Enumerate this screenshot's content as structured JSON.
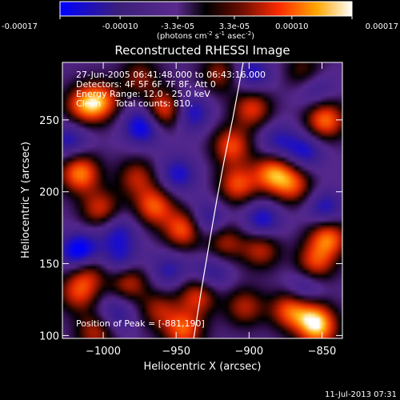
{
  "colorbar": {
    "tick_labels": [
      "-0.00017",
      "-0.00010",
      "-3.3e-05",
      "3.3e-05",
      "0.00010",
      "0.00017"
    ],
    "tick_values": [
      -0.00017,
      -0.0001,
      -3.3e-05,
      3.3e-05,
      0.0001,
      0.00017
    ],
    "range": [
      -0.00017,
      0.00017
    ],
    "units_prefix": "(photons cm",
    "units_exp1": "-2",
    "units_mid": " s",
    "units_exp2": "-1",
    "units_suffix": " asec",
    "units_exp3": "-2",
    "units_close": ")",
    "colors": [
      "#0000ff",
      "#3b1f6e",
      "#5a2a8e",
      "#000000",
      "#7a1000",
      "#ff3000",
      "#ffb000",
      "#ffffff"
    ]
  },
  "chart_data": {
    "type": "heatmap",
    "title": "Reconstructed RHESSI Image",
    "xlabel": "Heliocentric X (arcsec)",
    "ylabel": "Heliocentric Y (arcsec)",
    "xlim": [
      -1028,
      -836
    ],
    "ylim": [
      98,
      290
    ],
    "x_ticks": [
      -1000,
      -950,
      -900,
      -850
    ],
    "x_tick_labels": [
      "−1000",
      "−950",
      "−900",
      "−850"
    ],
    "y_ticks": [
      100,
      150,
      200,
      250
    ],
    "y_tick_labels": [
      "100",
      "150",
      "200",
      "250"
    ],
    "limb_curve": [
      [
        -938,
        98
      ],
      [
        -933,
        130
      ],
      [
        -928,
        160
      ],
      [
        -922,
        195
      ],
      [
        -917,
        222
      ],
      [
        -911,
        252
      ],
      [
        -904,
        290
      ]
    ],
    "peak_position": [
      -881,
      190
    ],
    "annotations": [
      "27-Jun-2005 06:41:48.000 to 06:43:16.000",
      "Detectors: 4F 5F 6F 7F 8F, Att 0",
      "Energy Range: 12.0 - 25.0 keV",
      "Clean     Total counts: 810.",
      "Position of Peak = [-881,190]"
    ],
    "blobs": [
      {
        "x": -958,
        "y": 257,
        "v": 0.9
      },
      {
        "x": -1014,
        "y": 260,
        "v": 0.75
      },
      {
        "x": -1002,
        "y": 263,
        "v": 0.85
      },
      {
        "x": -1016,
        "y": 213,
        "v": 1.0
      },
      {
        "x": -1002,
        "y": 188,
        "v": 0.7
      },
      {
        "x": -965,
        "y": 190,
        "v": 0.85
      },
      {
        "x": -977,
        "y": 210,
        "v": 0.6
      },
      {
        "x": -945,
        "y": 174,
        "v": 0.9
      },
      {
        "x": -1010,
        "y": 145,
        "v": 0.6
      },
      {
        "x": -1017,
        "y": 130,
        "v": 0.7
      },
      {
        "x": -983,
        "y": 138,
        "v": 0.75
      },
      {
        "x": -935,
        "y": 128,
        "v": 0.75
      },
      {
        "x": -962,
        "y": 118,
        "v": 0.55
      },
      {
        "x": -912,
        "y": 232,
        "v": 0.8
      },
      {
        "x": -908,
        "y": 205,
        "v": 0.8
      },
      {
        "x": -884,
        "y": 213,
        "v": 0.95
      },
      {
        "x": -870,
        "y": 205,
        "v": 0.75
      },
      {
        "x": -898,
        "y": 258,
        "v": 0.75
      },
      {
        "x": -848,
        "y": 250,
        "v": 0.95
      },
      {
        "x": -846,
        "y": 168,
        "v": 0.95
      },
      {
        "x": -855,
        "y": 150,
        "v": 0.75
      },
      {
        "x": -917,
        "y": 165,
        "v": 0.6
      },
      {
        "x": -892,
        "y": 160,
        "v": 0.65
      },
      {
        "x": -872,
        "y": 118,
        "v": 0.85
      },
      {
        "x": -856,
        "y": 112,
        "v": 0.75
      },
      {
        "x": -903,
        "y": 120,
        "v": 0.6
      },
      {
        "x": -852,
        "y": 104,
        "v": 0.7
      },
      {
        "x": -1005,
        "y": 103,
        "v": 0.65
      },
      {
        "x": -945,
        "y": 104,
        "v": 0.85
      },
      {
        "x": -920,
        "y": 282,
        "v": 0.55
      },
      {
        "x": -975,
        "y": 280,
        "v": 0.5
      },
      {
        "x": -862,
        "y": 283,
        "v": 0.5
      },
      {
        "x": -973,
        "y": 246,
        "v": -0.75
      },
      {
        "x": -1016,
        "y": 158,
        "v": -0.9
      },
      {
        "x": -988,
        "y": 151,
        "v": -0.55
      },
      {
        "x": -990,
        "y": 172,
        "v": -0.5
      },
      {
        "x": -949,
        "y": 212,
        "v": -0.55
      },
      {
        "x": -940,
        "y": 255,
        "v": -0.6
      },
      {
        "x": -929,
        "y": 180,
        "v": -0.55
      },
      {
        "x": -926,
        "y": 143,
        "v": -0.5
      },
      {
        "x": -891,
        "y": 180,
        "v": -0.6
      },
      {
        "x": -881,
        "y": 235,
        "v": -0.45
      },
      {
        "x": -862,
        "y": 228,
        "v": -0.55
      },
      {
        "x": -848,
        "y": 188,
        "v": -0.55
      },
      {
        "x": -862,
        "y": 133,
        "v": -0.5
      },
      {
        "x": -992,
        "y": 115,
        "v": -0.5
      },
      {
        "x": -955,
        "y": 145,
        "v": -0.45
      },
      {
        "x": -1023,
        "y": 236,
        "v": -0.5
      },
      {
        "x": -898,
        "y": 282,
        "v": -0.55
      },
      {
        "x": -855,
        "y": 272,
        "v": -0.45
      }
    ]
  },
  "footer": {
    "timestamp": "11-Jul-2013 07:31"
  }
}
